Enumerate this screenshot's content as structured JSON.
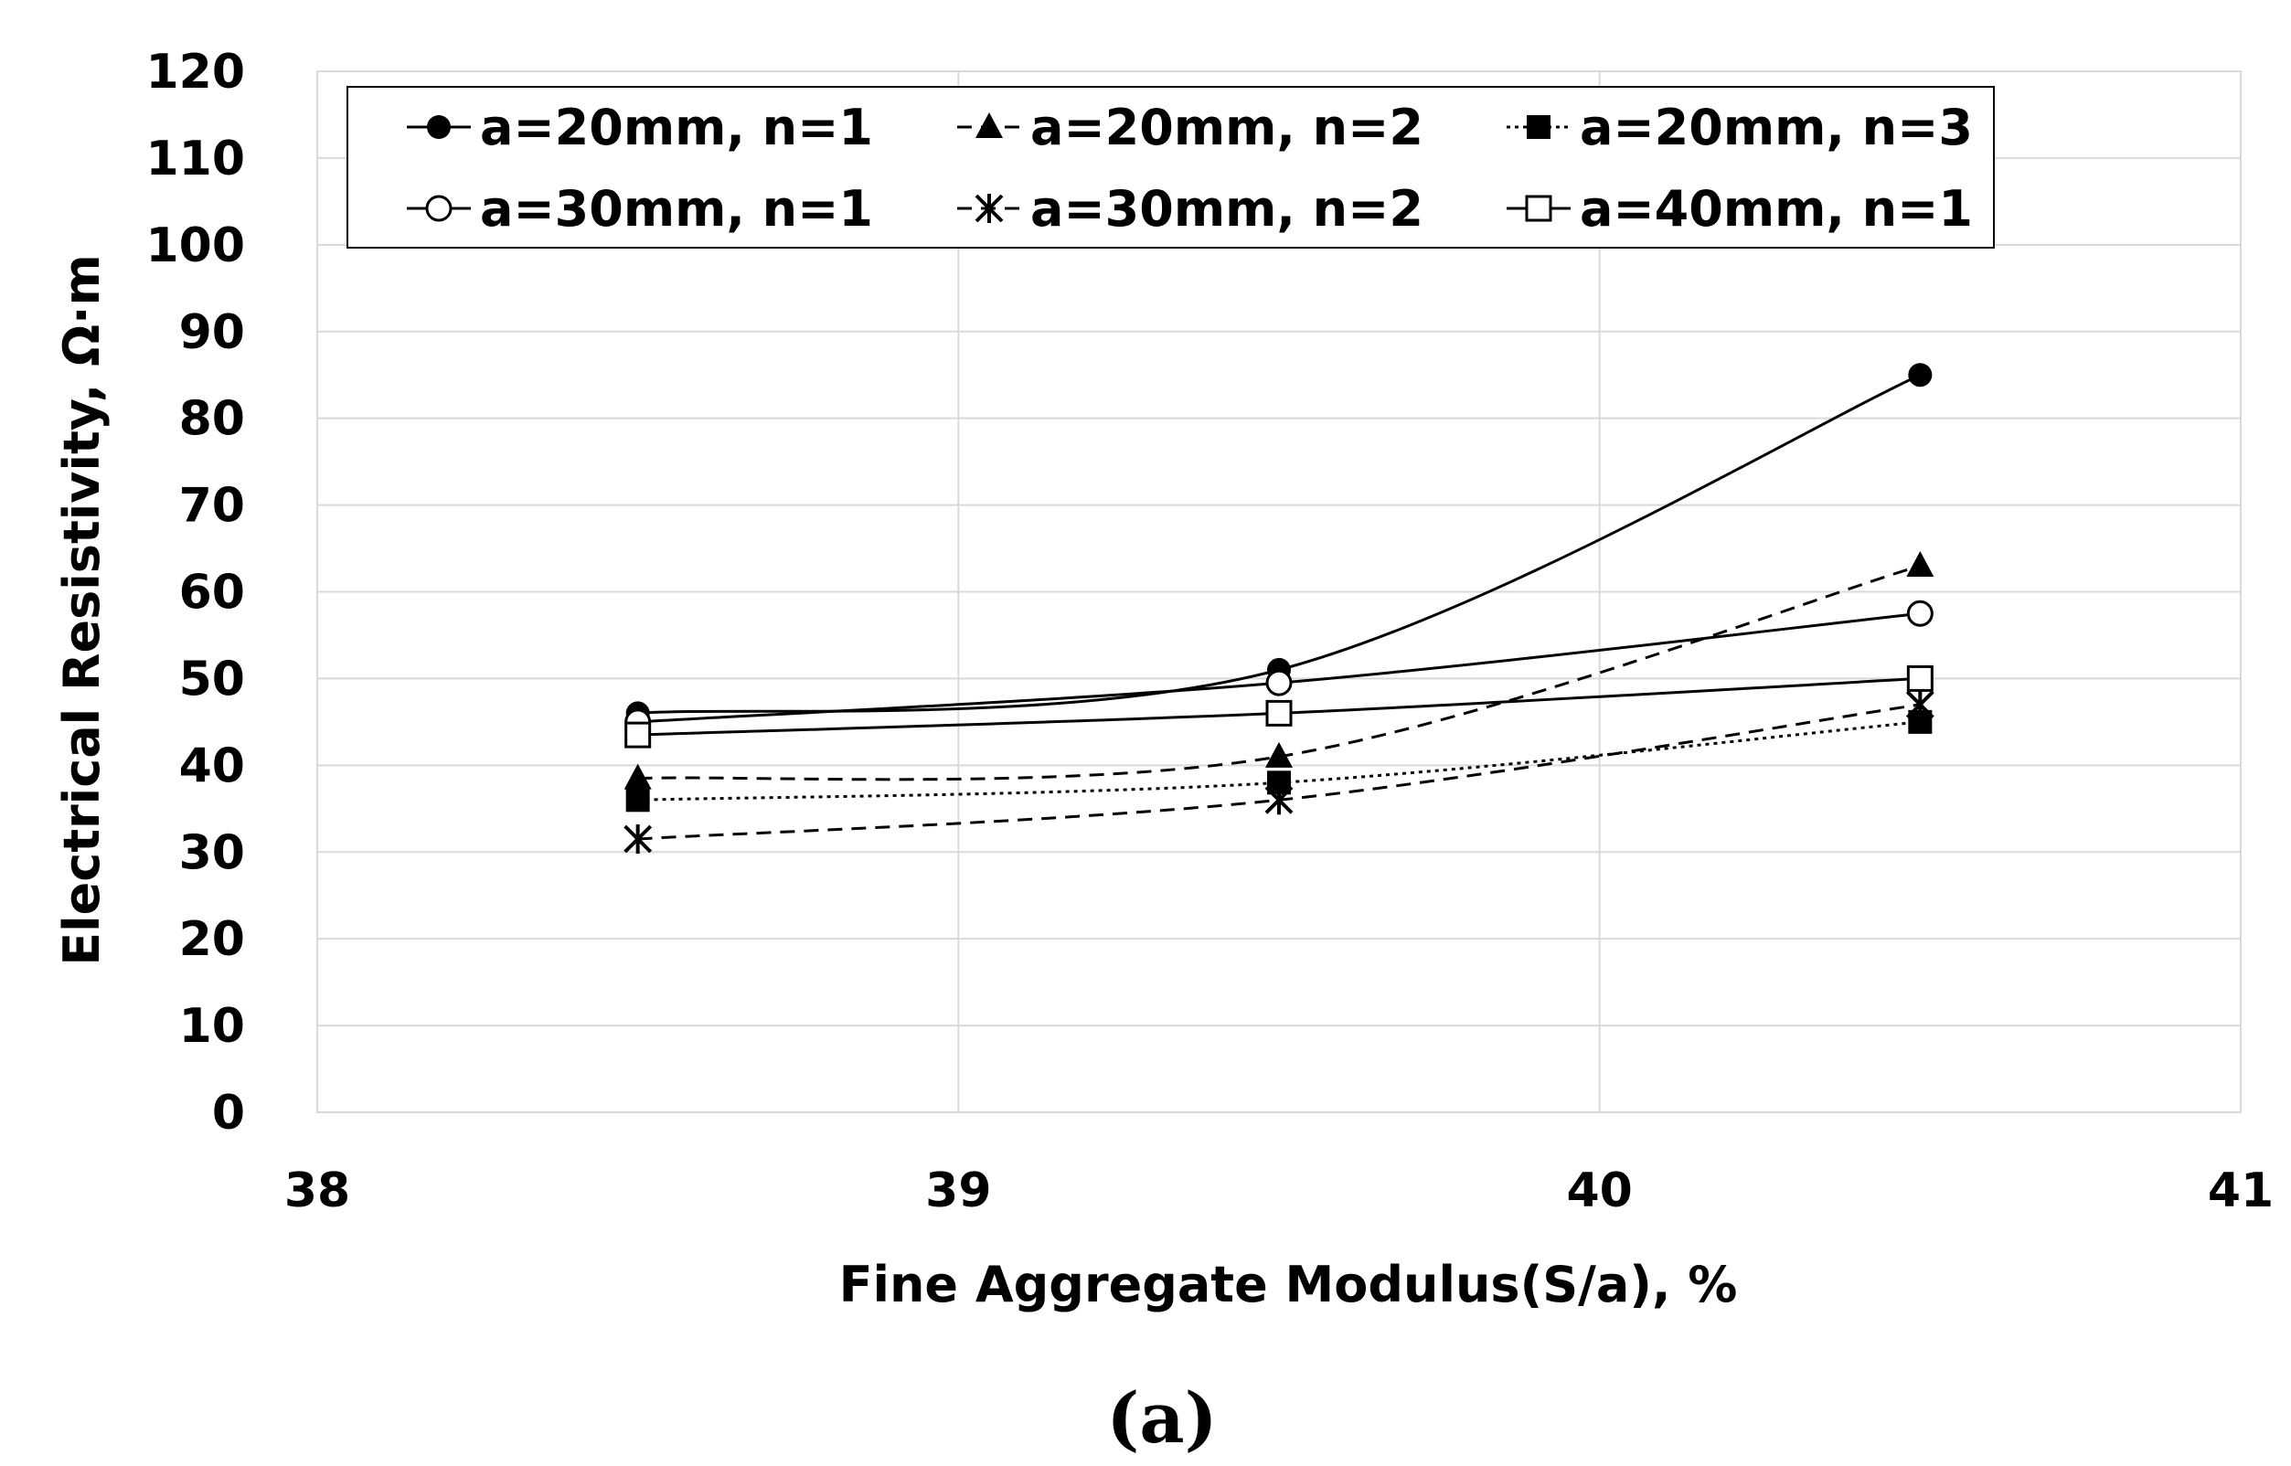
{
  "chart_data": {
    "type": "line",
    "title": "",
    "xlabel": "Fine Aggregate Modulus(S/a), %",
    "ylabel": "Electrical Resistivity, Ω·m",
    "caption": "(a)",
    "xlim": [
      38,
      41
    ],
    "ylim": [
      0,
      120
    ],
    "xticks": [
      "38",
      "39",
      "40",
      "41"
    ],
    "yticks": [
      "0",
      "10",
      "20",
      "30",
      "40",
      "50",
      "60",
      "70",
      "80",
      "90",
      "100",
      "110",
      "120"
    ],
    "grid": true,
    "legend_position": "top-left",
    "x": [
      38.5,
      39.5,
      40.5
    ],
    "series": [
      {
        "name": "a=20mm, n=1",
        "values": [
          46,
          51,
          85
        ],
        "marker": "filled-circle",
        "line": "solid"
      },
      {
        "name": "a=20mm, n=2",
        "values": [
          38.5,
          41,
          63
        ],
        "marker": "filled-triangle",
        "line": "dashed"
      },
      {
        "name": "a=20mm, n=3",
        "values": [
          36,
          38,
          45
        ],
        "marker": "filled-square",
        "line": "dotted"
      },
      {
        "name": "a=30mm, n=1",
        "values": [
          45,
          49.5,
          57.5
        ],
        "marker": "open-circle",
        "line": "solid"
      },
      {
        "name": "a=30mm, n=2",
        "values": [
          31.5,
          36,
          47
        ],
        "marker": "asterisk",
        "line": "dashed"
      },
      {
        "name": "a=40mm, n=1",
        "values": [
          43.5,
          46,
          50
        ],
        "marker": "open-square",
        "line": "solid"
      }
    ]
  }
}
